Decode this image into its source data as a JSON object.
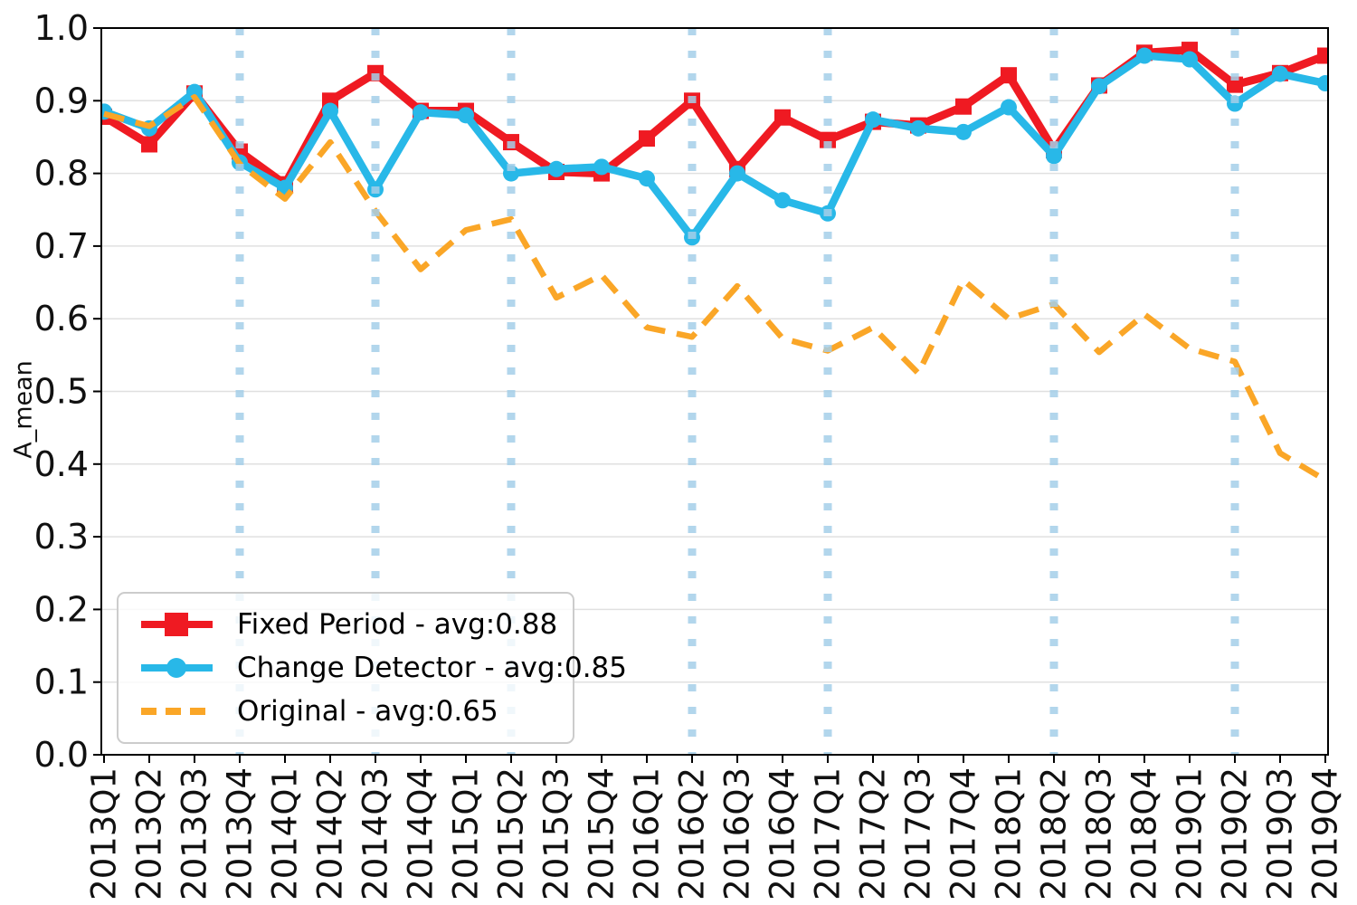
{
  "chart_data": {
    "type": "line",
    "title": "",
    "xlabel": "",
    "ylabel": "A_mean",
    "ylim": [
      0.0,
      1.0
    ],
    "y_ticks": [
      "0.0",
      "0.1",
      "0.2",
      "0.3",
      "0.4",
      "0.5",
      "0.6",
      "0.7",
      "0.8",
      "0.9",
      "1.0"
    ],
    "grid": "horizontal",
    "legend_position": "lower-left",
    "categories": [
      "2013Q1",
      "2013Q2",
      "2013Q3",
      "2013Q4",
      "2014Q1",
      "2014Q2",
      "2014Q3",
      "2014Q4",
      "2015Q1",
      "2015Q2",
      "2015Q3",
      "2015Q4",
      "2016Q1",
      "2016Q2",
      "2016Q3",
      "2016Q4",
      "2017Q1",
      "2017Q2",
      "2017Q3",
      "2017Q4",
      "2018Q1",
      "2018Q2",
      "2018Q3",
      "2018Q4",
      "2019Q1",
      "2019Q2",
      "2019Q3",
      "2019Q4"
    ],
    "series": [
      {
        "name": "Fixed Period - avg:0.88",
        "slug": "fixed-period",
        "color": "#ef1a22",
        "marker": "square",
        "dash": null,
        "values": [
          0.878,
          0.84,
          0.91,
          0.83,
          0.785,
          0.9,
          0.938,
          0.886,
          0.886,
          0.843,
          0.802,
          0.8,
          0.848,
          0.9,
          0.806,
          0.877,
          0.846,
          0.871,
          0.866,
          0.892,
          0.935,
          0.832,
          0.921,
          0.966,
          0.97,
          0.922,
          0.938,
          0.962
        ]
      },
      {
        "name": "Change Detector - avg:0.85",
        "slug": "change-detector",
        "color": "#28b8e8",
        "marker": "circle",
        "dash": null,
        "values": [
          0.885,
          0.862,
          0.912,
          0.815,
          0.78,
          0.886,
          0.778,
          0.884,
          0.88,
          0.8,
          0.806,
          0.809,
          0.793,
          0.712,
          0.8,
          0.763,
          0.745,
          0.874,
          0.862,
          0.857,
          0.891,
          0.824,
          0.92,
          0.962,
          0.957,
          0.896,
          0.937,
          0.924
        ]
      },
      {
        "name": "Original - avg:0.65",
        "slug": "original",
        "color": "#faa627",
        "marker": null,
        "dash": [
          23,
          13
        ],
        "values": [
          0.882,
          0.865,
          0.905,
          0.813,
          0.765,
          0.843,
          0.748,
          0.668,
          0.722,
          0.737,
          0.629,
          0.66,
          0.588,
          0.575,
          0.645,
          0.573,
          0.556,
          0.588,
          0.525,
          0.653,
          0.6,
          0.62,
          0.554,
          0.606,
          0.559,
          0.541,
          0.415,
          0.378
        ]
      }
    ],
    "event_lines": {
      "color": "#a5cfe9",
      "categories": [
        "2013Q4",
        "2014Q3",
        "2015Q2",
        "2016Q2",
        "2017Q1",
        "2018Q2",
        "2019Q2"
      ]
    },
    "colors": {
      "grid": "#e0e0e0",
      "spine": "#000000",
      "text": "#111111"
    }
  }
}
